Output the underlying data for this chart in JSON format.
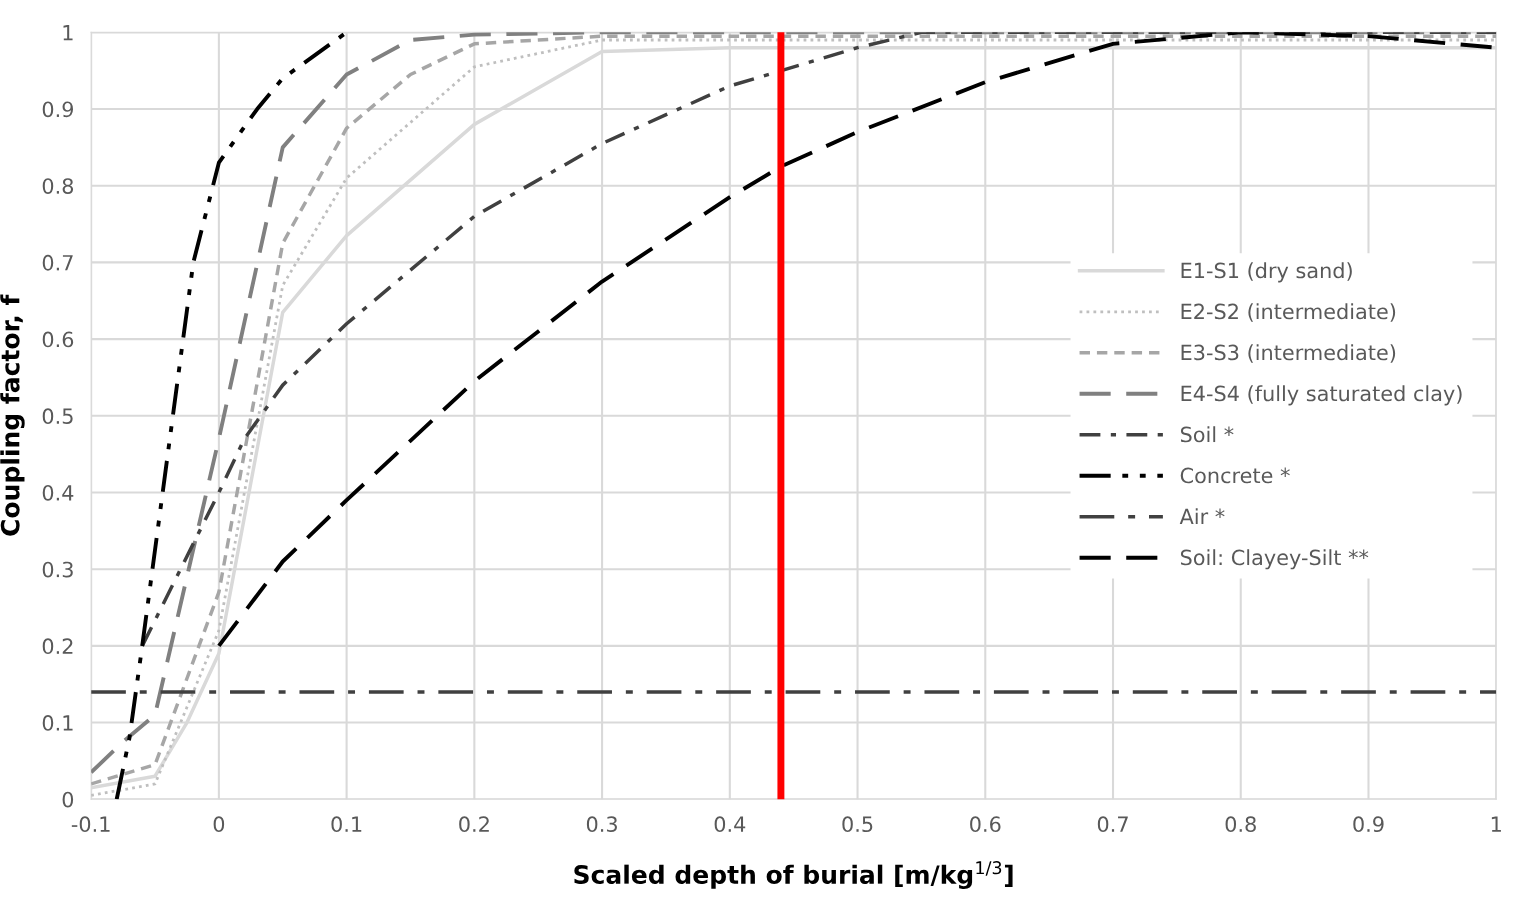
{
  "chart_data": {
    "type": "line",
    "xlabel": "Scaled depth of burial [m/kg$^{1/3}$]",
    "ylabel": "Coupling factor, f",
    "xlim": [
      -0.1,
      1
    ],
    "ylim": [
      0,
      1
    ],
    "xticks": [
      -0.1,
      0,
      0.1,
      0.2,
      0.3,
      0.4,
      0.5,
      0.6,
      0.7,
      0.8,
      0.9,
      1
    ],
    "yticks": [
      0,
      0.1,
      0.2,
      0.3,
      0.4,
      0.5,
      0.6,
      0.7,
      0.8,
      0.9,
      1
    ],
    "grid": true,
    "legend": "right",
    "marker": "none",
    "ref_lines": [
      {
        "axis": "x",
        "value": 0.44,
        "color": "#ff0000",
        "line_style": "solid"
      }
    ],
    "series": [
      {
        "name": "E1-S1 (dry sand)",
        "color": "#d9d9d9",
        "line_style": "solid",
        "x": [
          -0.1,
          -0.05,
          -0.025,
          0,
          0.05,
          0.1,
          0.2,
          0.3,
          0.4,
          0.5,
          0.6,
          0.7,
          0.8,
          0.9,
          1
        ],
        "values": [
          0.015,
          0.03,
          0.1,
          0.19,
          0.635,
          0.735,
          0.88,
          0.975,
          0.98,
          0.98,
          0.98,
          0.98,
          0.98,
          0.98,
          0.98
        ]
      },
      {
        "name": "E2-S2 (intermediate)",
        "color": "#bfbfbf",
        "line_style": "dotted",
        "x": [
          -0.1,
          -0.05,
          0,
          0.05,
          0.1,
          0.2,
          0.3,
          0.4,
          0.5,
          0.6,
          0.7,
          0.8,
          0.9,
          1
        ],
        "values": [
          0.005,
          0.02,
          0.22,
          0.67,
          0.81,
          0.955,
          0.99,
          0.99,
          0.99,
          0.99,
          0.99,
          0.99,
          0.99,
          0.99
        ]
      },
      {
        "name": "E3-S3 (intermediate)",
        "color": "#a6a6a6",
        "line_style": "dashed",
        "x": [
          -0.1,
          -0.05,
          0,
          0.05,
          0.1,
          0.15,
          0.2,
          0.3,
          0.4,
          0.5,
          0.6,
          0.7,
          0.8,
          0.9,
          1
        ],
        "values": [
          0.02,
          0.045,
          0.27,
          0.725,
          0.875,
          0.945,
          0.985,
          0.995,
          0.995,
          0.995,
          0.995,
          0.995,
          0.995,
          0.995,
          0.995
        ]
      },
      {
        "name": "E4-S4 (fully saturated clay)",
        "color": "#808080",
        "line_style": "longdash",
        "x": [
          -0.1,
          -0.075,
          -0.05,
          0,
          0.05,
          0.1,
          0.15,
          0.2,
          0.3,
          0.4,
          0.5,
          0.6,
          0.7,
          0.8,
          0.9,
          1
        ],
        "values": [
          0.035,
          0.075,
          0.11,
          0.47,
          0.85,
          0.945,
          0.99,
          0.997,
          1,
          1,
          1,
          1,
          1,
          1,
          1,
          1
        ]
      },
      {
        "name": "Soil *",
        "color": "#404040",
        "line_style": "dashdot",
        "x": [
          -0.06,
          -0.03,
          0,
          0.02,
          0.05,
          0.1,
          0.2,
          0.3,
          0.4,
          0.5,
          0.55,
          0.6,
          0.7,
          0.8,
          0.9,
          1
        ],
        "values": [
          0.2,
          0.3,
          0.4,
          0.47,
          0.54,
          0.62,
          0.76,
          0.855,
          0.93,
          0.98,
          1,
          1,
          1,
          1,
          1,
          1
        ]
      },
      {
        "name": "Concrete *",
        "color": "#000000",
        "line_style": "dashdotdot",
        "x": [
          -0.08,
          -0.07,
          -0.06,
          -0.04,
          -0.02,
          0,
          0.03,
          0.05,
          0.1
        ],
        "values": [
          0.0,
          0.08,
          0.2,
          0.45,
          0.7,
          0.83,
          0.9,
          0.94,
          1.0
        ]
      },
      {
        "name": "Air *",
        "color": "#404040",
        "line_style": "longdashdot",
        "x": [
          -0.1,
          1
        ],
        "values": [
          0.14,
          0.14
        ]
      },
      {
        "name": "Soil: Clayey-Silt **",
        "color": "#000000",
        "line_style": "longdash",
        "x": [
          0,
          0.05,
          0.1,
          0.2,
          0.3,
          0.4,
          0.44,
          0.5,
          0.6,
          0.7,
          0.8,
          0.9,
          1
        ],
        "values": [
          0.2,
          0.31,
          0.39,
          0.545,
          0.675,
          0.785,
          0.825,
          0.87,
          0.935,
          0.985,
          1.0,
          0.995,
          0.98
        ]
      }
    ]
  }
}
